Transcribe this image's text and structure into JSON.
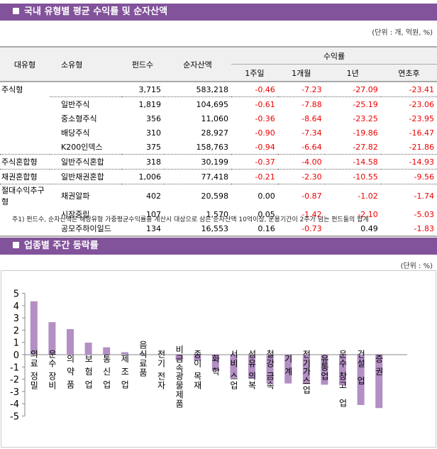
{
  "section1": {
    "title": "국내 유형별 평균 수익률 및 순자산액",
    "unit": "(단위 : 개, 억원, %)",
    "headers": {
      "major": "대유형",
      "minor": "소유형",
      "funds": "펀드수",
      "assets": "순자산액",
      "returns": "수익률",
      "w1": "1주일",
      "m1": "1개월",
      "y1": "1년",
      "ytd": "연초후"
    },
    "rows": [
      [
        "주식형",
        "",
        "3,715",
        "583,218",
        "-0.46",
        "-7.23",
        "-27.09",
        "-23.41"
      ],
      [
        "",
        "일반주식",
        "1,819",
        "104,695",
        "-0.61",
        "-7.88",
        "-25.19",
        "-23.06"
      ],
      [
        "",
        "중소형주식",
        "356",
        "11,060",
        "-0.36",
        "-8.64",
        "-23.25",
        "-23.95"
      ],
      [
        "",
        "배당주식",
        "310",
        "28,927",
        "-0.90",
        "-7.34",
        "-19.86",
        "-16.47"
      ],
      [
        "",
        "K200인덱스",
        "375",
        "158,763",
        "-0.94",
        "-6.64",
        "-27.82",
        "-21.86"
      ],
      [
        "주식혼합형",
        "일반주식혼합",
        "318",
        "30,199",
        "-0.37",
        "-4.00",
        "-14.58",
        "-14.93"
      ],
      [
        "채권혼합형",
        "일반채권혼합",
        "1,006",
        "77,418",
        "-0.21",
        "-2.30",
        "-10.55",
        "-9.56"
      ],
      [
        "절대수익추구형",
        "채권알파",
        "402",
        "20,598",
        "0.00",
        "-0.87",
        "-1.02",
        "-1.74"
      ],
      [
        "",
        "시장중립",
        "107",
        "1,570",
        "0.05",
        "-1.42",
        "-2.10",
        "-5.03"
      ],
      [
        "",
        "공모주하이일드",
        "134",
        "16,553",
        "0.16",
        "-0.73",
        "0.49",
        "-1.83"
      ]
    ],
    "note": "주1) 펀드수, 순자산액은 해당유형 가중평균수익률을 계산시 대상으로 삼은 순자산액 10억이상, 운용기간이 2주가 넘는 펀드들의 합계"
  },
  "section2": {
    "title": "업종별 주간 등락률",
    "unit": "(단위 : %)"
  },
  "colors": {
    "header": "#82529A",
    "bar": "#B38FC4",
    "negative": "#E00000"
  },
  "chart_data": {
    "type": "bar",
    "ylim": [
      -5,
      5
    ],
    "yticks": [
      5,
      4,
      3,
      2,
      1,
      0,
      -1,
      -2,
      -3,
      -4,
      -5
    ],
    "grid": false,
    "categories": [
      "의료정밀",
      "운수장비",
      "의약품",
      "보험업",
      "통신업",
      "제조업",
      "음식료품",
      "전기전자",
      "비금속광물제품",
      "종이목재",
      "화학",
      "서비스업",
      "섬유의복",
      "철강금속",
      "기계",
      "전기가스업",
      "유통업",
      "운수창고업",
      "건설업",
      "증권"
    ],
    "labels": [
      [
        "의료",
        "정밀"
      ],
      [
        "운수",
        "장비"
      ],
      [
        "의",
        "약",
        "품"
      ],
      [
        "보",
        "험",
        "업"
      ],
      [
        "통",
        "신",
        "업"
      ],
      [
        "제",
        "조",
        "업"
      ],
      [
        "음식료품"
      ],
      [
        "전기",
        "전자"
      ],
      [
        "비금속",
        "광물제품"
      ],
      [
        "종이",
        "목재"
      ],
      [
        "화",
        "학"
      ],
      [
        "서비",
        "스업"
      ],
      [
        "섬유",
        "의복"
      ],
      [
        "철강",
        "금속"
      ],
      [
        "기",
        "계"
      ],
      [
        "전기",
        "가스업"
      ],
      [
        "유",
        "통업"
      ],
      [
        "운수",
        "창고",
        "업"
      ],
      [
        "건설",
        "업"
      ],
      [
        "증",
        "권"
      ]
    ],
    "values": [
      4.35,
      2.65,
      2.08,
      0.98,
      0.6,
      0.2,
      0.08,
      0.0,
      -0.45,
      -0.5,
      -1.3,
      -1.9,
      -1.95,
      -2.35,
      -2.35,
      -2.4,
      -2.45,
      -2.5,
      -4.1,
      -4.35
    ]
  }
}
